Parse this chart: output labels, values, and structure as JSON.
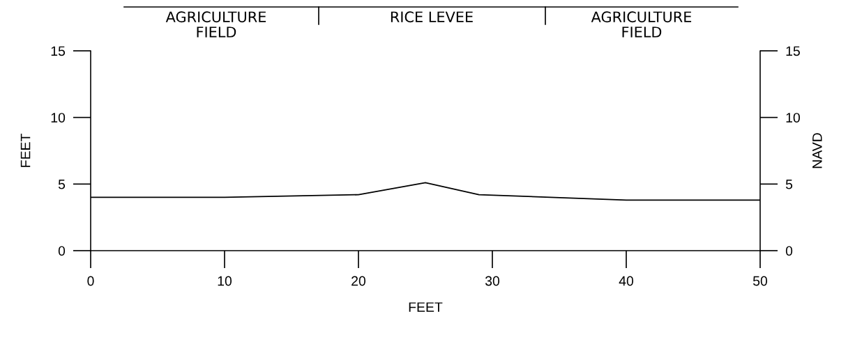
{
  "chart_data": {
    "type": "line",
    "xlabel": "FEET",
    "ylabel": "FEET",
    "y2label": "NAVD",
    "x": [
      0,
      10,
      20,
      25,
      29,
      40,
      50
    ],
    "series": [
      {
        "color": "#000000",
        "values": [
          4.0,
          4.0,
          4.2,
          5.1,
          4.2,
          3.8,
          3.8
        ]
      }
    ],
    "xlim": [
      0,
      50
    ],
    "xticks": [
      0,
      10,
      20,
      30,
      40,
      50
    ],
    "ylim": [
      0,
      15
    ],
    "yticks": [
      0,
      5,
      10,
      15
    ],
    "y2lim": [
      0,
      15
    ],
    "y2ticks": [
      0,
      5,
      10,
      15
    ],
    "annotations": [
      "AGRICULTURE\nFIELD",
      "RICE LEVEE",
      "AGRICULTURE\nFIELD"
    ],
    "grid": false,
    "legend": false,
    "marker": "none",
    "line_style": "solid"
  }
}
